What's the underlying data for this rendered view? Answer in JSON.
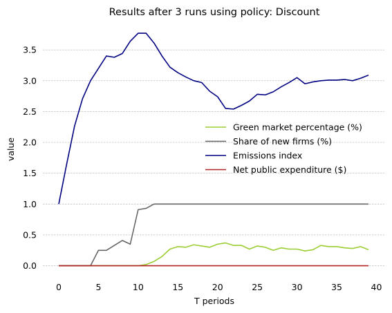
{
  "chart_data": {
    "type": "line",
    "title": "Results after 3 runs using policy: Discount",
    "xlabel": "T periods",
    "ylabel": "value",
    "xlim": [
      -2,
      41
    ],
    "ylim": [
      -0.15,
      3.95
    ],
    "xticks": [
      0,
      5,
      10,
      15,
      20,
      25,
      30,
      35,
      40
    ],
    "yticks": [
      0.0,
      0.5,
      1.0,
      1.5,
      2.0,
      2.5,
      3.0,
      3.5
    ],
    "xtick_labels": [
      "0",
      "5",
      "10",
      "15",
      "20",
      "25",
      "30",
      "35",
      "40"
    ],
    "ytick_labels": [
      "0.0",
      "0.5",
      "1.0",
      "1.5",
      "2.0",
      "2.5",
      "3.0",
      "3.5"
    ],
    "grid": "y-dashed",
    "legend_position": "center-right",
    "series": [
      {
        "name": "Green market percentage (%)",
        "color": "#9acd32",
        "x": [
          0,
          1,
          2,
          3,
          4,
          5,
          6,
          7,
          8,
          9,
          10,
          11,
          12,
          13,
          14,
          15,
          16,
          17,
          18,
          19,
          20,
          21,
          22,
          23,
          24,
          25,
          26,
          27,
          28,
          29,
          30,
          31,
          32,
          33,
          34,
          35,
          36,
          37,
          38,
          39
        ],
        "values": [
          0,
          0,
          0,
          0,
          0,
          0,
          0,
          0,
          0,
          0,
          0,
          0.02,
          0.07,
          0.15,
          0.27,
          0.31,
          0.3,
          0.34,
          0.32,
          0.3,
          0.35,
          0.37,
          0.33,
          0.33,
          0.27,
          0.32,
          0.3,
          0.25,
          0.29,
          0.27,
          0.27,
          0.24,
          0.26,
          0.33,
          0.31,
          0.31,
          0.29,
          0.28,
          0.31,
          0.26
        ]
      },
      {
        "name": "Share of new firms (%)",
        "color": "#666666",
        "x": [
          0,
          1,
          2,
          3,
          4,
          5,
          6,
          7,
          8,
          9,
          10,
          11,
          12,
          13,
          14,
          15,
          16,
          17,
          18,
          19,
          20,
          21,
          22,
          23,
          24,
          25,
          26,
          27,
          28,
          29,
          30,
          31,
          32,
          33,
          34,
          35,
          36,
          37,
          38,
          39
        ],
        "values": [
          0,
          0,
          0,
          0,
          0,
          0.25,
          0.25,
          0.33,
          0.41,
          0.35,
          0.91,
          0.93,
          1.0,
          1.0,
          1.0,
          1.0,
          1.0,
          1.0,
          1.0,
          1.0,
          1.0,
          1.0,
          1.0,
          1.0,
          1.0,
          1.0,
          1.0,
          1.0,
          1.0,
          1.0,
          1.0,
          1.0,
          1.0,
          1.0,
          1.0,
          1.0,
          1.0,
          1.0,
          1.0,
          1.0
        ]
      },
      {
        "name": "Emissions index",
        "color": "#000080",
        "x": [
          0,
          1,
          2,
          3,
          4,
          5,
          6,
          7,
          8,
          9,
          10,
          11,
          12,
          13,
          14,
          15,
          16,
          17,
          18,
          19,
          20,
          21,
          22,
          23,
          24,
          25,
          26,
          27,
          28,
          29,
          30,
          31,
          32,
          33,
          34,
          35,
          36,
          37,
          38,
          39
        ],
        "values": [
          1.0,
          1.65,
          2.27,
          2.71,
          3.0,
          3.2,
          3.4,
          3.38,
          3.44,
          3.64,
          3.77,
          3.77,
          3.61,
          3.4,
          3.22,
          3.13,
          3.06,
          3.0,
          2.97,
          2.83,
          2.74,
          2.55,
          2.54,
          2.6,
          2.67,
          2.78,
          2.77,
          2.82,
          2.9,
          2.97,
          3.05,
          2.95,
          2.98,
          3.0,
          3.01,
          3.01,
          3.02,
          3.0,
          3.04,
          3.09
        ]
      },
      {
        "name": "Net public expenditure ($)",
        "color": "#b22222",
        "x": [
          0,
          1,
          2,
          3,
          4,
          5,
          6,
          7,
          8,
          9,
          10,
          11,
          12,
          13,
          14,
          15,
          16,
          17,
          18,
          19,
          20,
          21,
          22,
          23,
          24,
          25,
          26,
          27,
          28,
          29,
          30,
          31,
          32,
          33,
          34,
          35,
          36,
          37,
          38,
          39
        ],
        "values": [
          0,
          0,
          0,
          0,
          0,
          0,
          0,
          0,
          0,
          0,
          0,
          0,
          0,
          0,
          0,
          0,
          0,
          0,
          0,
          0,
          0,
          0,
          0,
          0,
          0,
          0,
          0,
          0,
          0,
          0,
          0,
          0,
          0,
          0,
          0,
          0,
          0,
          0,
          0,
          0
        ]
      }
    ]
  }
}
